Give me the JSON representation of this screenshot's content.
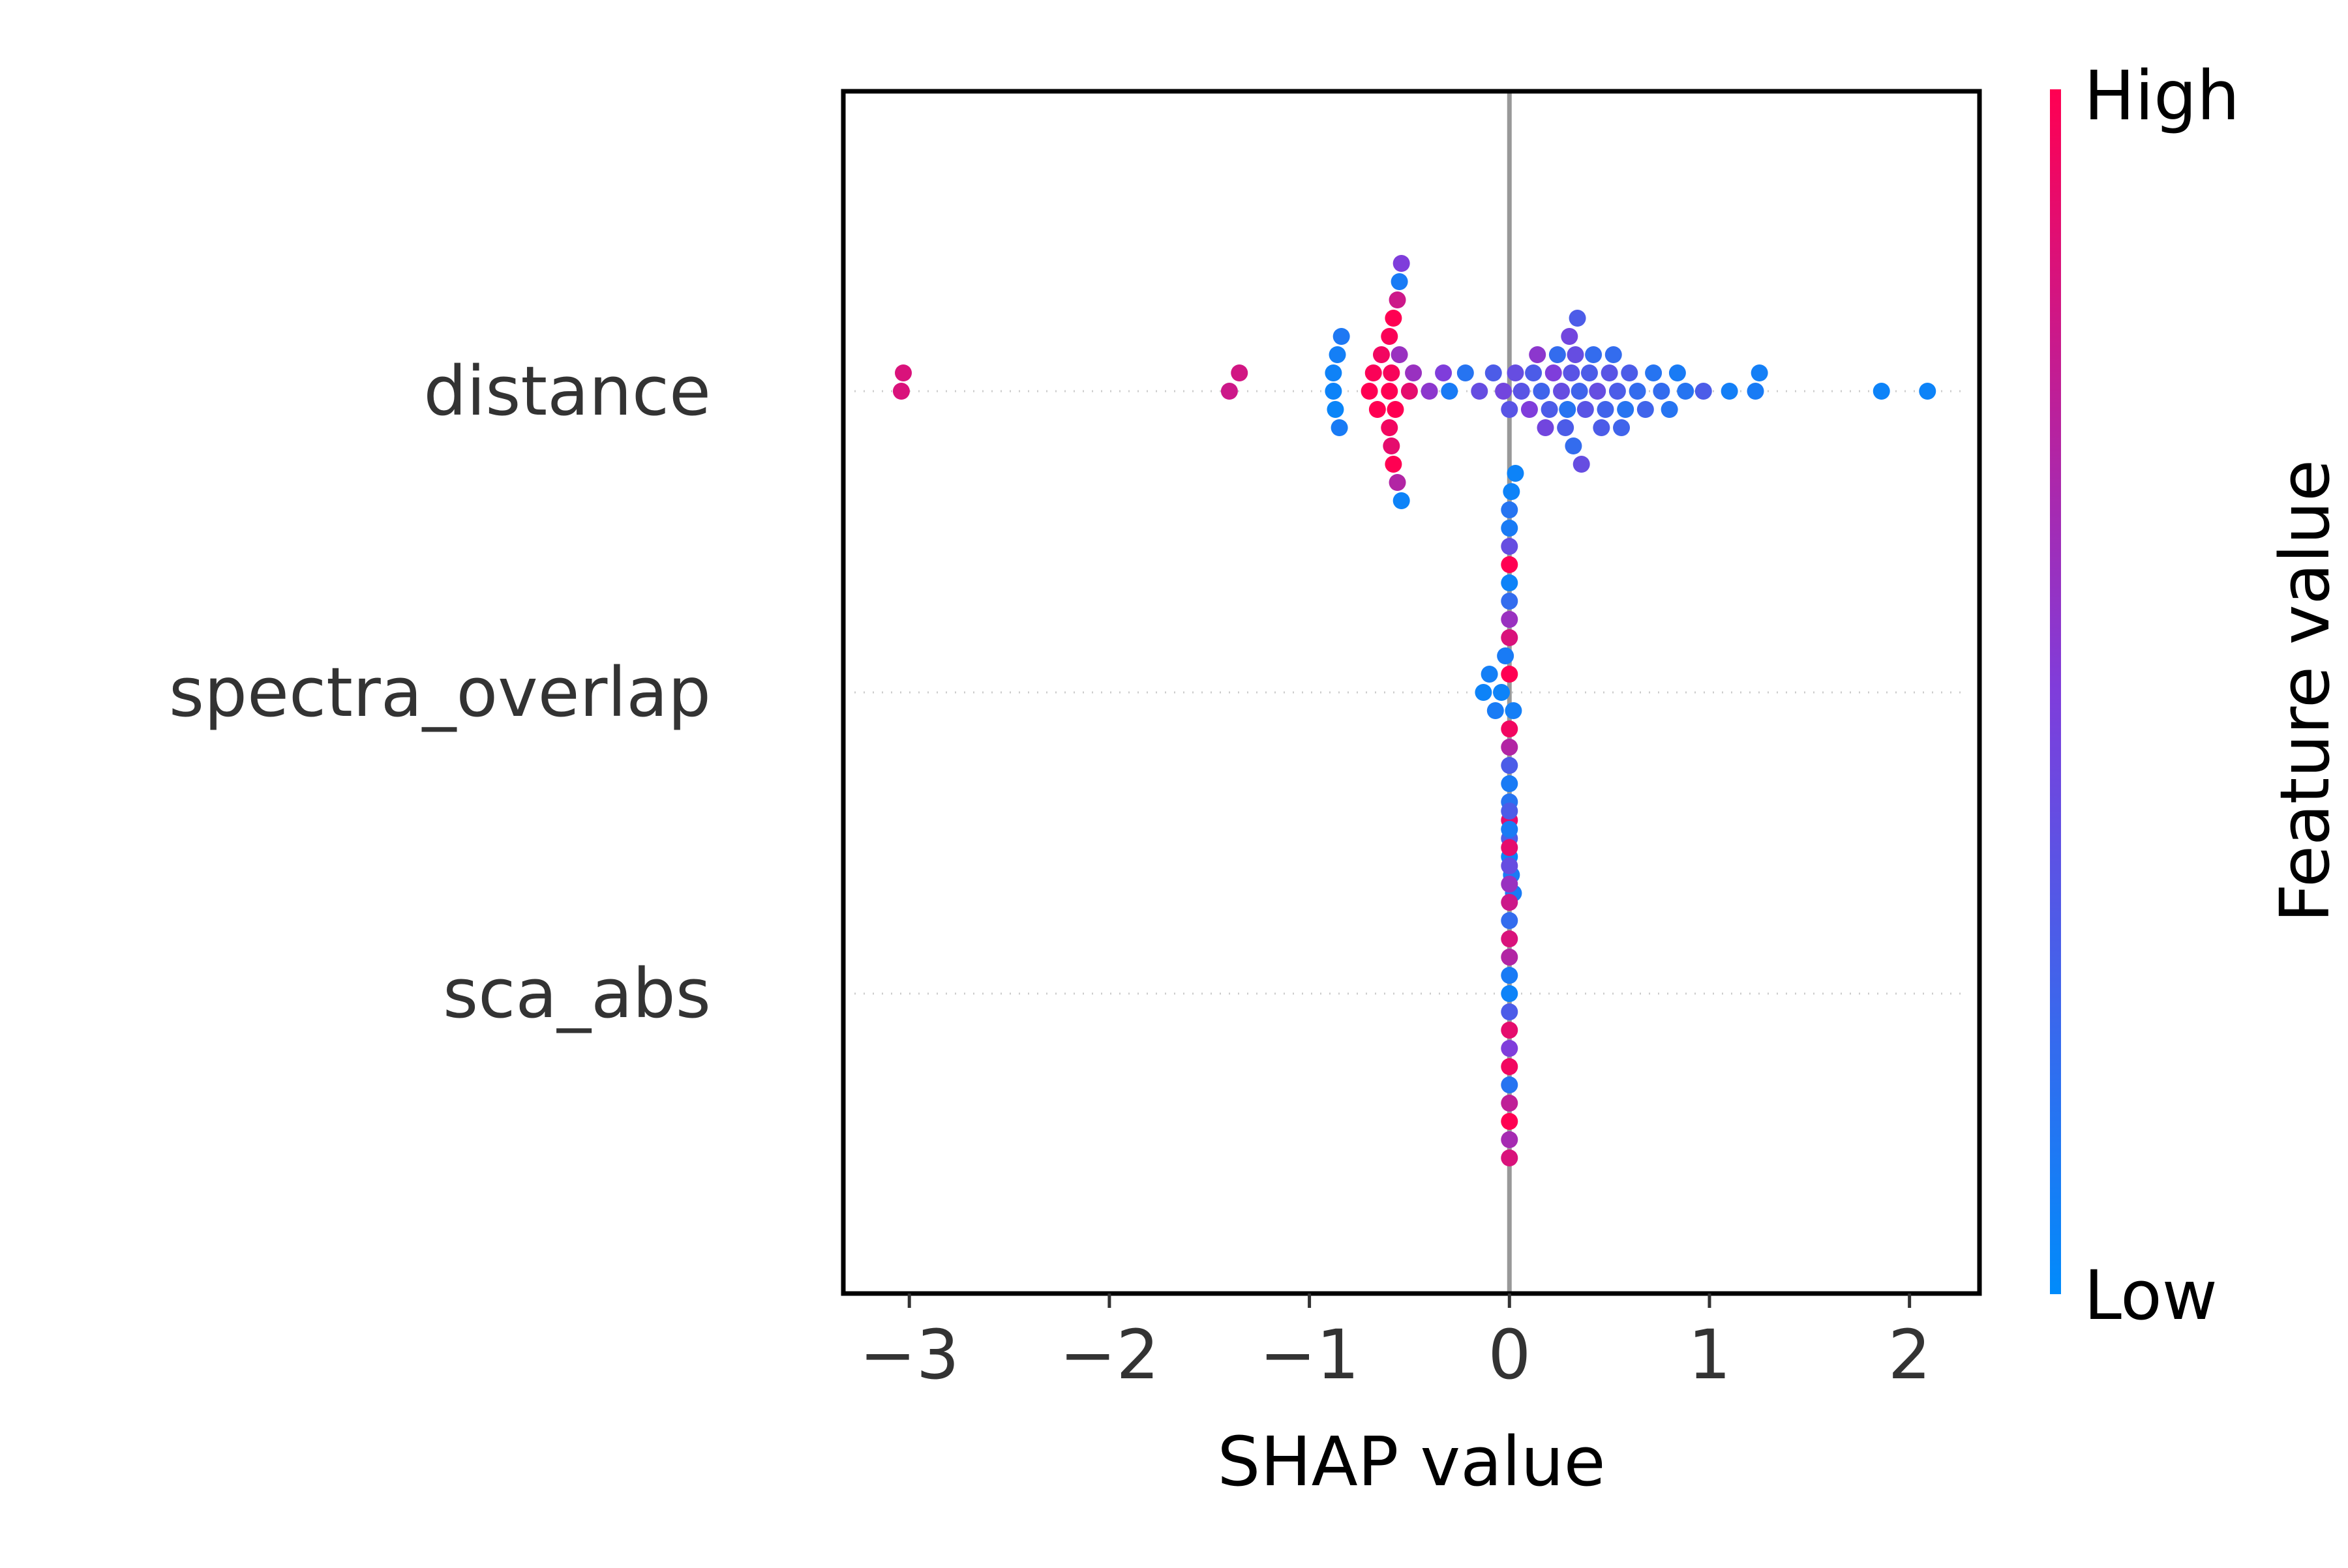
{
  "chart_data": {
    "type": "scatter",
    "subtype": "shap-beeswarm",
    "xlabel": "SHAP value",
    "xlim": [
      -3.33,
      2.35
    ],
    "xticks": [
      -3,
      -2,
      -1,
      0,
      1,
      2
    ],
    "xtick_labels": [
      "−3",
      "−2",
      "−1",
      "0",
      "1",
      "2"
    ],
    "grid": false,
    "zero_line": true,
    "features": [
      "distance",
      "spectra_overlap",
      "sca_abs"
    ],
    "colorbar": {
      "label": "Feature value",
      "high_label": "High",
      "low_label": "Low",
      "high_color": "#ff0052",
      "mid_color": "#7f3ddb",
      "low_color": "#008bfb",
      "placement": "right"
    },
    "series": [
      {
        "name": "distance",
        "points": [
          {
            "x": -3.04,
            "v": 0.85
          },
          {
            "x": -3.03,
            "v": 0.85
          },
          {
            "x": -1.4,
            "v": 0.8
          },
          {
            "x": -1.35,
            "v": 0.82
          },
          {
            "x": -0.88,
            "v": 0.05
          },
          {
            "x": -0.86,
            "v": 0.08
          },
          {
            "x": -0.85,
            "v": 0.1
          },
          {
            "x": -0.87,
            "v": 0.04
          },
          {
            "x": -0.84,
            "v": 0.12
          },
          {
            "x": -0.88,
            "v": 0.06
          },
          {
            "x": -0.7,
            "v": 1.0
          },
          {
            "x": -0.68,
            "v": 0.98
          },
          {
            "x": -0.66,
            "v": 1.0
          },
          {
            "x": -0.64,
            "v": 0.95
          },
          {
            "x": -0.6,
            "v": 1.0
          },
          {
            "x": -0.59,
            "v": 0.97
          },
          {
            "x": -0.58,
            "v": 1.0
          },
          {
            "x": -0.6,
            "v": 0.95
          },
          {
            "x": -0.57,
            "v": 1.0
          },
          {
            "x": -0.59,
            "v": 0.9
          },
          {
            "x": -0.58,
            "v": 1.0
          },
          {
            "x": -0.6,
            "v": 0.98
          },
          {
            "x": -0.56,
            "v": 0.8
          },
          {
            "x": -0.55,
            "v": 0.6
          },
          {
            "x": -0.54,
            "v": 0.05
          },
          {
            "x": -0.56,
            "v": 0.7
          },
          {
            "x": -0.55,
            "v": 0.1
          },
          {
            "x": -0.54,
            "v": 0.5
          },
          {
            "x": -0.5,
            "v": 0.9
          },
          {
            "x": -0.48,
            "v": 0.6
          },
          {
            "x": -0.4,
            "v": 0.55
          },
          {
            "x": -0.33,
            "v": 0.5
          },
          {
            "x": -0.3,
            "v": 0.1
          },
          {
            "x": -0.22,
            "v": 0.15
          },
          {
            "x": -0.15,
            "v": 0.4
          },
          {
            "x": -0.08,
            "v": 0.3
          },
          {
            "x": -0.03,
            "v": 0.45
          },
          {
            "x": 0.0,
            "v": 0.35
          },
          {
            "x": 0.03,
            "v": 0.4
          },
          {
            "x": 0.06,
            "v": 0.35
          },
          {
            "x": 0.1,
            "v": 0.5
          },
          {
            "x": 0.12,
            "v": 0.3
          },
          {
            "x": 0.14,
            "v": 0.55
          },
          {
            "x": 0.16,
            "v": 0.25
          },
          {
            "x": 0.18,
            "v": 0.45
          },
          {
            "x": 0.2,
            "v": 0.3
          },
          {
            "x": 0.22,
            "v": 0.5
          },
          {
            "x": 0.24,
            "v": 0.2
          },
          {
            "x": 0.26,
            "v": 0.4
          },
          {
            "x": 0.28,
            "v": 0.3
          },
          {
            "x": 0.29,
            "v": 0.15
          },
          {
            "x": 0.3,
            "v": 0.45
          },
          {
            "x": 0.31,
            "v": 0.35
          },
          {
            "x": 0.32,
            "v": 0.2
          },
          {
            "x": 0.33,
            "v": 0.4
          },
          {
            "x": 0.34,
            "v": 0.3
          },
          {
            "x": 0.35,
            "v": 0.25
          },
          {
            "x": 0.36,
            "v": 0.4
          },
          {
            "x": 0.38,
            "v": 0.35
          },
          {
            "x": 0.4,
            "v": 0.3
          },
          {
            "x": 0.42,
            "v": 0.2
          },
          {
            "x": 0.44,
            "v": 0.4
          },
          {
            "x": 0.46,
            "v": 0.3
          },
          {
            "x": 0.48,
            "v": 0.25
          },
          {
            "x": 0.5,
            "v": 0.35
          },
          {
            "x": 0.52,
            "v": 0.2
          },
          {
            "x": 0.54,
            "v": 0.3
          },
          {
            "x": 0.56,
            "v": 0.25
          },
          {
            "x": 0.58,
            "v": 0.15
          },
          {
            "x": 0.6,
            "v": 0.3
          },
          {
            "x": 0.64,
            "v": 0.2
          },
          {
            "x": 0.68,
            "v": 0.25
          },
          {
            "x": 0.72,
            "v": 0.15
          },
          {
            "x": 0.76,
            "v": 0.2
          },
          {
            "x": 0.8,
            "v": 0.15
          },
          {
            "x": 0.84,
            "v": 0.1
          },
          {
            "x": 0.88,
            "v": 0.15
          },
          {
            "x": 0.97,
            "v": 0.3
          },
          {
            "x": 1.1,
            "v": 0.08
          },
          {
            "x": 1.23,
            "v": 0.1
          },
          {
            "x": 1.25,
            "v": 0.08
          },
          {
            "x": 1.86,
            "v": 0.05
          },
          {
            "x": 2.09,
            "v": 0.05
          }
        ]
      },
      {
        "name": "spectra_overlap",
        "points": [
          {
            "x": -0.13,
            "v": 0.05
          },
          {
            "x": -0.1,
            "v": 0.08
          },
          {
            "x": -0.07,
            "v": 0.1
          },
          {
            "x": -0.04,
            "v": 0.05
          },
          {
            "x": -0.02,
            "v": 0.1
          },
          {
            "x": 0.0,
            "v": 1.0
          },
          {
            "x": 0.0,
            "v": 0.95
          },
          {
            "x": 0.0,
            "v": 0.85
          },
          {
            "x": 0.0,
            "v": 0.7
          },
          {
            "x": 0.0,
            "v": 0.6
          },
          {
            "x": 0.0,
            "v": 0.3
          },
          {
            "x": 0.0,
            "v": 0.2
          },
          {
            "x": 0.0,
            "v": 0.1
          },
          {
            "x": 0.0,
            "v": 0.05
          },
          {
            "x": 0.0,
            "v": 0.15
          },
          {
            "x": 0.01,
            "v": 0.1
          },
          {
            "x": 0.01,
            "v": 0.05
          },
          {
            "x": 0.02,
            "v": 0.08
          },
          {
            "x": 0.02,
            "v": 0.1
          },
          {
            "x": 0.03,
            "v": 0.05
          },
          {
            "x": 0.0,
            "v": 1.0
          },
          {
            "x": 0.0,
            "v": 0.9
          },
          {
            "x": 0.0,
            "v": 0.4
          },
          {
            "x": 0.0,
            "v": 0.3
          },
          {
            "x": 0.0,
            "v": 0.1
          },
          {
            "x": 0.0,
            "v": 0.05
          },
          {
            "x": 0.0,
            "v": 0.15
          }
        ]
      },
      {
        "name": "sca_abs",
        "points": [
          {
            "x": 0.0,
            "v": 0.05
          },
          {
            "x": 0.0,
            "v": 0.1
          },
          {
            "x": 0.0,
            "v": 0.3
          },
          {
            "x": 0.0,
            "v": 0.7
          },
          {
            "x": 0.0,
            "v": 0.9
          },
          {
            "x": 0.0,
            "v": 0.85
          },
          {
            "x": 0.0,
            "v": 0.5
          },
          {
            "x": 0.0,
            "v": 0.2
          },
          {
            "x": 0.0,
            "v": 0.95
          },
          {
            "x": 0.0,
            "v": 0.8
          },
          {
            "x": 0.0,
            "v": 0.15
          },
          {
            "x": 0.0,
            "v": 0.6
          },
          {
            "x": 0.0,
            "v": 0.75
          },
          {
            "x": 0.0,
            "v": 0.4
          },
          {
            "x": 0.0,
            "v": 1.0
          },
          {
            "x": 0.0,
            "v": 0.9
          },
          {
            "x": 0.0,
            "v": 0.65
          },
          {
            "x": 0.0,
            "v": 0.1
          },
          {
            "x": 0.0,
            "v": 0.85
          },
          {
            "x": 0.0,
            "v": 0.3
          }
        ]
      }
    ]
  }
}
